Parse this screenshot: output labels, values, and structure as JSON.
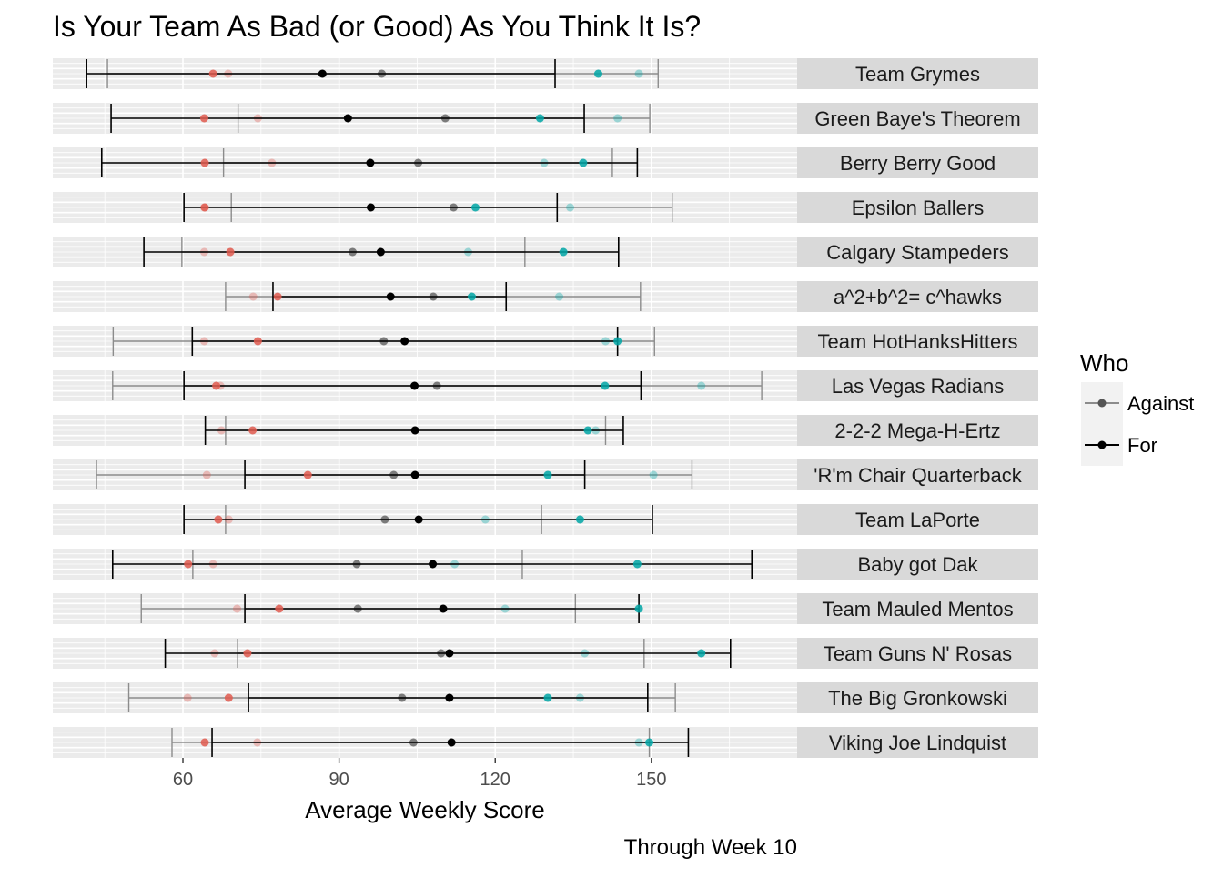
{
  "chart_data": {
    "type": "scatter",
    "title": "Is Your Team As Bad (or Good) As You Think It Is?",
    "xlabel": "Average Weekly Score",
    "caption": "Through Week 10",
    "xlim": [
      35,
      178
    ],
    "xticks": [
      60,
      90,
      120,
      150
    ],
    "grid": true,
    "legend": {
      "title": "Who",
      "position": "right",
      "entries": [
        "Against",
        "For"
      ]
    },
    "colors": {
      "low_point": "#e05a4f",
      "high_point": "#00a6a6",
      "for_line": "#000000",
      "against_line": "#8c8c8c",
      "panel_bg": "#ebebeb",
      "strip_bg": "#d9d9d9"
    },
    "series_fields": {
      "for": [
        "min",
        "low",
        "mean",
        "high",
        "max"
      ],
      "against": [
        "min",
        "low",
        "mean",
        "high",
        "max"
      ]
    },
    "teams": [
      {
        "name": "Team Grymes",
        "for": [
          41.5,
          65.8,
          86.8,
          139.8,
          131.5
        ],
        "against": [
          45.5,
          68.7,
          98.2,
          147.6,
          151.3
        ]
      },
      {
        "name": "Green Baye's Theorem",
        "for": [
          46.2,
          64.1,
          91.7,
          128.6,
          137.1
        ],
        "against": [
          70.6,
          74.4,
          110.4,
          143.5,
          149.7
        ]
      },
      {
        "name": "Berry Berry Good",
        "for": [
          44.4,
          64.2,
          96.0,
          136.9,
          147.3
        ],
        "against": [
          67.8,
          77.1,
          105.2,
          129.4,
          142.5
        ]
      },
      {
        "name": "Epsilon Ballers",
        "for": [
          60.2,
          64.2,
          96.1,
          116.2,
          131.9
        ],
        "against": [
          69.3,
          64.1,
          112.0,
          134.4,
          154.0
        ]
      },
      {
        "name": "Calgary Stampeders",
        "for": [
          52.5,
          69.1,
          98.0,
          133.1,
          143.7
        ],
        "against": [
          59.8,
          64.1,
          92.6,
          114.8,
          125.7
        ]
      },
      {
        "name": "a^2+b^2= c^hawks",
        "for": [
          77.3,
          78.2,
          99.9,
          115.5,
          122.1
        ],
        "against": [
          68.2,
          73.5,
          108.1,
          132.3,
          147.9
        ]
      },
      {
        "name": "Team HotHanksHitters",
        "for": [
          61.8,
          74.4,
          102.6,
          143.5,
          143.5
        ],
        "against": [
          46.6,
          64.1,
          98.6,
          141.2,
          150.6
        ]
      },
      {
        "name": "Las Vegas Radians",
        "for": [
          60.2,
          66.4,
          104.5,
          141.1,
          148.0
        ],
        "against": [
          46.5,
          67.2,
          108.8,
          159.6,
          171.2
        ]
      },
      {
        "name": "2-2-2 Mega-H-Ertz",
        "for": [
          64.3,
          73.4,
          104.6,
          137.8,
          144.6
        ],
        "against": [
          68.2,
          67.4,
          104.6,
          139.3,
          141.2
        ]
      },
      {
        "name": "'R'm Chair Quarterback",
        "for": [
          71.9,
          84.0,
          104.6,
          130.1,
          137.2
        ],
        "against": [
          43.4,
          64.6,
          100.5,
          150.4,
          157.8
        ]
      },
      {
        "name": "Team LaPorte",
        "for": [
          60.2,
          66.8,
          105.3,
          136.3,
          150.2
        ],
        "against": [
          68.2,
          68.8,
          98.8,
          118.1,
          128.9
        ]
      },
      {
        "name": "Baby got Dak",
        "for": [
          46.5,
          61.0,
          108.0,
          147.3,
          169.3
        ],
        "against": [
          61.9,
          65.8,
          93.4,
          112.2,
          125.2
        ]
      },
      {
        "name": "Team Mauled Mentos",
        "for": [
          71.9,
          78.5,
          110.0,
          147.6,
          147.6
        ],
        "against": [
          52.0,
          70.4,
          93.6,
          121.9,
          135.4
        ]
      },
      {
        "name": "Team Guns N' Rosas",
        "for": [
          56.6,
          72.4,
          111.2,
          159.6,
          165.2
        ],
        "against": [
          70.5,
          66.1,
          109.6,
          137.2,
          148.6
        ]
      },
      {
        "name": "The Big Gronkowski",
        "for": [
          72.6,
          68.8,
          111.2,
          130.1,
          149.3
        ],
        "against": [
          49.6,
          60.9,
          102.1,
          136.3,
          154.6
        ]
      },
      {
        "name": "Viking Joe Lindquist",
        "for": [
          65.6,
          64.2,
          111.6,
          149.6,
          157.1
        ],
        "against": [
          57.9,
          74.3,
          104.3,
          147.6,
          149.6
        ]
      }
    ]
  }
}
